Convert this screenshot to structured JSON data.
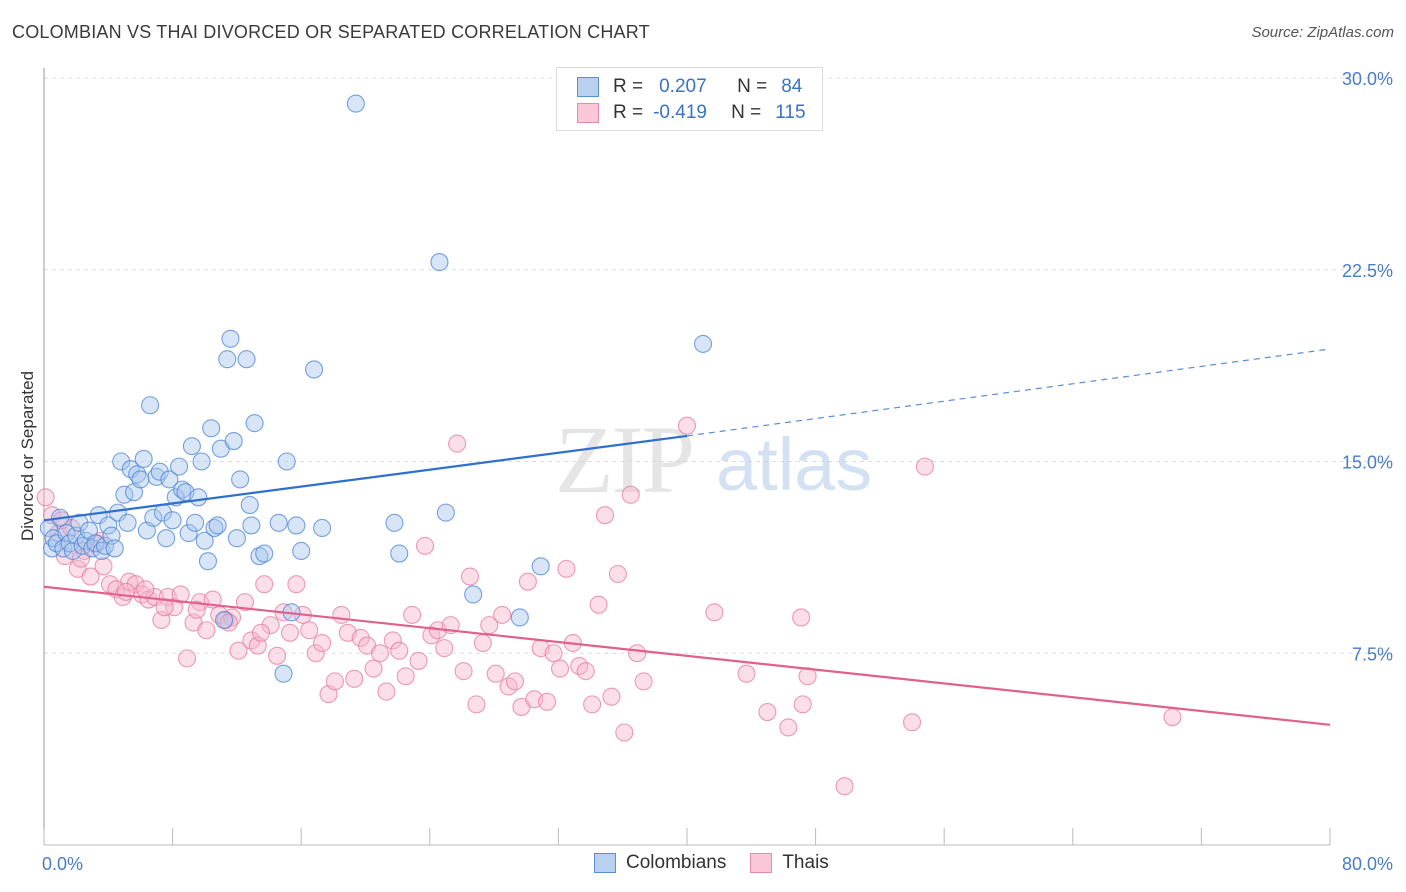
{
  "title": "COLOMBIAN VS THAI DIVORCED OR SEPARATED CORRELATION CHART",
  "source": "Source: ZipAtlas.com",
  "watermark": {
    "zip": "ZIP",
    "atlas": "atlas"
  },
  "legend": {
    "rows": [
      {
        "r_label": "R =",
        "r_value": "0.207",
        "n_label": "N =",
        "n_value": "84"
      },
      {
        "r_label": "R =",
        "r_value": "-0.419",
        "n_label": "N =",
        "n_value": "115"
      }
    ]
  },
  "colors": {
    "blue_fill": "#a9c6ee",
    "blue_stroke": "#4a84d6",
    "blue_line": "#2f6fcf",
    "pink_fill": "#f7b6cc",
    "pink_stroke": "#e77aa0",
    "pink_line": "#e0608e",
    "tick_text": "#4a7cc7",
    "grid": "#dddddd"
  },
  "chart_data": {
    "type": "scatter",
    "title": "COLOMBIAN VS THAI DIVORCED OR SEPARATED CORRELATION CHART",
    "xlabel": "",
    "ylabel": "Divorced or Separated",
    "xlim": [
      0,
      80
    ],
    "ylim": [
      0,
      30
    ],
    "x_tick_labels": [
      "0.0%",
      "80.0%"
    ],
    "y_ticks": [
      7.5,
      15.0,
      22.5,
      30.0
    ],
    "y_tick_labels": [
      "7.5%",
      "15.0%",
      "22.5%",
      "30.0%"
    ],
    "grid": true,
    "legend_position": "bottom",
    "series": [
      {
        "name": "Colombians",
        "r": 0.207,
        "n": 84,
        "trend": {
          "x0": 0,
          "y0": 12.7,
          "x1": 40,
          "y1": 16.0,
          "dashed_to_x": 80,
          "dashed_to_y": 19.4
        },
        "points": [
          [
            0.3,
            12.4
          ],
          [
            0.5,
            11.6
          ],
          [
            0.6,
            12.0
          ],
          [
            0.8,
            11.8
          ],
          [
            1.0,
            12.8
          ],
          [
            1.2,
            11.6
          ],
          [
            1.4,
            12.2
          ],
          [
            1.6,
            11.8
          ],
          [
            1.8,
            11.5
          ],
          [
            2.0,
            12.1
          ],
          [
            2.2,
            12.6
          ],
          [
            2.4,
            11.7
          ],
          [
            2.6,
            11.9
          ],
          [
            2.8,
            12.3
          ],
          [
            3.0,
            11.6
          ],
          [
            3.2,
            11.8
          ],
          [
            3.4,
            12.9
          ],
          [
            3.6,
            11.5
          ],
          [
            3.8,
            11.7
          ],
          [
            4.0,
            12.5
          ],
          [
            4.2,
            12.1
          ],
          [
            4.4,
            11.6
          ],
          [
            4.6,
            13.0
          ],
          [
            4.8,
            15.0
          ],
          [
            5.0,
            13.7
          ],
          [
            5.2,
            12.6
          ],
          [
            5.4,
            14.7
          ],
          [
            5.6,
            13.8
          ],
          [
            5.8,
            14.5
          ],
          [
            6.0,
            14.3
          ],
          [
            6.2,
            15.1
          ],
          [
            6.4,
            12.3
          ],
          [
            6.6,
            17.2
          ],
          [
            6.8,
            12.8
          ],
          [
            7.0,
            14.4
          ],
          [
            7.2,
            14.6
          ],
          [
            7.4,
            13.0
          ],
          [
            7.6,
            12.0
          ],
          [
            7.8,
            14.3
          ],
          [
            8.0,
            12.7
          ],
          [
            8.2,
            13.6
          ],
          [
            8.4,
            14.8
          ],
          [
            8.6,
            13.9
          ],
          [
            8.8,
            13.8
          ],
          [
            9.0,
            12.2
          ],
          [
            9.2,
            15.6
          ],
          [
            9.4,
            12.6
          ],
          [
            9.6,
            13.6
          ],
          [
            9.8,
            15.0
          ],
          [
            10.0,
            11.9
          ],
          [
            10.2,
            11.1
          ],
          [
            10.4,
            16.3
          ],
          [
            10.6,
            12.4
          ],
          [
            10.8,
            12.5
          ],
          [
            11.0,
            15.5
          ],
          [
            11.2,
            8.8
          ],
          [
            11.4,
            19.0
          ],
          [
            11.6,
            19.8
          ],
          [
            11.8,
            15.8
          ],
          [
            12.0,
            12.0
          ],
          [
            12.2,
            14.3
          ],
          [
            12.6,
            19.0
          ],
          [
            12.8,
            13.3
          ],
          [
            12.9,
            12.5
          ],
          [
            13.1,
            16.5
          ],
          [
            13.4,
            11.3
          ],
          [
            13.7,
            11.4
          ],
          [
            14.6,
            12.6
          ],
          [
            15.1,
            15.0
          ],
          [
            15.4,
            9.1
          ],
          [
            15.7,
            12.5
          ],
          [
            16.0,
            11.5
          ],
          [
            16.8,
            18.6
          ],
          [
            17.3,
            12.4
          ],
          [
            14.9,
            6.7
          ],
          [
            19.4,
            29.0
          ],
          [
            21.8,
            12.6
          ],
          [
            22.1,
            11.4
          ],
          [
            24.6,
            22.8
          ],
          [
            25.0,
            13.0
          ],
          [
            26.7,
            9.8
          ],
          [
            29.6,
            8.9
          ],
          [
            30.9,
            10.9
          ],
          [
            41.0,
            19.6
          ]
        ]
      },
      {
        "name": "Thais",
        "r": -0.419,
        "n": 115,
        "trend": {
          "x0": 0,
          "y0": 10.1,
          "x1": 80,
          "y1": 4.7
        },
        "points": [
          [
            0.1,
            13.6
          ],
          [
            0.5,
            12.9
          ],
          [
            0.9,
            12.2
          ],
          [
            1.3,
            11.3
          ],
          [
            1.7,
            12.4
          ],
          [
            2.1,
            10.8
          ],
          [
            2.5,
            11.5
          ],
          [
            2.9,
            10.5
          ],
          [
            3.3,
            11.8
          ],
          [
            3.7,
            10.9
          ],
          [
            4.1,
            10.2
          ],
          [
            4.5,
            10.0
          ],
          [
            4.9,
            9.7
          ],
          [
            5.3,
            10.3
          ],
          [
            5.7,
            10.2
          ],
          [
            6.1,
            9.8
          ],
          [
            6.5,
            9.6
          ],
          [
            6.9,
            9.7
          ],
          [
            7.3,
            8.8
          ],
          [
            7.7,
            9.7
          ],
          [
            8.1,
            9.3
          ],
          [
            8.5,
            9.8
          ],
          [
            8.9,
            7.3
          ],
          [
            9.3,
            8.7
          ],
          [
            9.7,
            9.5
          ],
          [
            10.1,
            8.4
          ],
          [
            10.5,
            9.6
          ],
          [
            10.9,
            9.0
          ],
          [
            11.3,
            8.8
          ],
          [
            11.7,
            8.9
          ],
          [
            12.1,
            7.6
          ],
          [
            12.5,
            9.5
          ],
          [
            12.9,
            8.0
          ],
          [
            13.3,
            7.8
          ],
          [
            13.7,
            10.2
          ],
          [
            14.1,
            8.6
          ],
          [
            14.5,
            7.4
          ],
          [
            14.9,
            9.1
          ],
          [
            15.3,
            8.3
          ],
          [
            15.7,
            10.2
          ],
          [
            16.1,
            9.0
          ],
          [
            16.5,
            8.4
          ],
          [
            16.9,
            7.5
          ],
          [
            17.3,
            7.9
          ],
          [
            17.7,
            5.9
          ],
          [
            18.1,
            6.4
          ],
          [
            18.5,
            9.0
          ],
          [
            18.9,
            8.3
          ],
          [
            19.3,
            6.5
          ],
          [
            19.7,
            8.1
          ],
          [
            20.1,
            7.8
          ],
          [
            20.5,
            6.9
          ],
          [
            20.9,
            7.5
          ],
          [
            21.3,
            6.0
          ],
          [
            21.7,
            8.0
          ],
          [
            22.1,
            7.6
          ],
          [
            22.5,
            6.6
          ],
          [
            22.9,
            9.0
          ],
          [
            23.3,
            7.2
          ],
          [
            23.7,
            11.7
          ],
          [
            24.1,
            8.2
          ],
          [
            24.5,
            8.4
          ],
          [
            24.9,
            7.7
          ],
          [
            25.3,
            8.6
          ],
          [
            25.7,
            15.7
          ],
          [
            26.1,
            6.8
          ],
          [
            26.5,
            10.5
          ],
          [
            26.9,
            5.5
          ],
          [
            27.3,
            7.9
          ],
          [
            27.7,
            8.6
          ],
          [
            28.1,
            6.7
          ],
          [
            28.5,
            9.0
          ],
          [
            28.9,
            6.2
          ],
          [
            29.3,
            6.4
          ],
          [
            29.7,
            5.4
          ],
          [
            30.1,
            10.3
          ],
          [
            30.5,
            5.7
          ],
          [
            30.9,
            7.7
          ],
          [
            31.3,
            5.6
          ],
          [
            31.7,
            7.5
          ],
          [
            32.1,
            6.9
          ],
          [
            32.5,
            10.8
          ],
          [
            32.9,
            7.9
          ],
          [
            33.3,
            7.0
          ],
          [
            33.7,
            6.8
          ],
          [
            34.1,
            5.5
          ],
          [
            34.5,
            9.4
          ],
          [
            34.9,
            12.9
          ],
          [
            35.3,
            5.8
          ],
          [
            35.7,
            10.6
          ],
          [
            36.1,
            4.4
          ],
          [
            36.5,
            13.7
          ],
          [
            36.9,
            7.5
          ],
          [
            37.3,
            6.4
          ],
          [
            40.0,
            16.4
          ],
          [
            41.7,
            9.1
          ],
          [
            43.7,
            6.7
          ],
          [
            45.0,
            5.2
          ],
          [
            46.3,
            4.6
          ],
          [
            47.1,
            8.9
          ],
          [
            47.5,
            6.6
          ],
          [
            47.2,
            5.5
          ],
          [
            49.8,
            2.3
          ],
          [
            54.0,
            4.8
          ],
          [
            54.8,
            14.8
          ],
          [
            70.2,
            5.0
          ],
          [
            1.1,
            12.7
          ],
          [
            2.3,
            11.2
          ],
          [
            3.5,
            11.9
          ],
          [
            5.1,
            9.9
          ],
          [
            6.3,
            10.0
          ],
          [
            7.5,
            9.3
          ],
          [
            9.5,
            9.2
          ],
          [
            11.5,
            8.7
          ],
          [
            13.5,
            8.3
          ]
        ]
      }
    ]
  }
}
